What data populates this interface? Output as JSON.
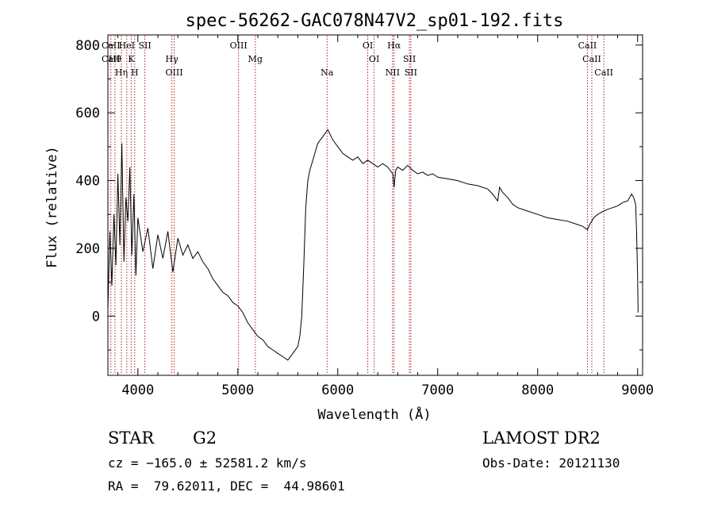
{
  "chart_data": {
    "type": "line",
    "title": "spec-56262-GAC078N47V2_sp01-192.fits",
    "xlabel": "Wavelength (Å)",
    "ylabel": "Flux (relative)",
    "xlim": [
      3700,
      9050
    ],
    "ylim": [
      -175,
      830
    ],
    "xticks": [
      4000,
      5000,
      6000,
      7000,
      8000,
      9000
    ],
    "yticks": [
      0,
      200,
      400,
      600,
      800
    ],
    "grid": false,
    "line_color": "#000000",
    "marker_color": "#b22222",
    "series": [
      {
        "x": [
          3700,
          3720,
          3740,
          3760,
          3780,
          3800,
          3820,
          3840,
          3860,
          3880,
          3900,
          3920,
          3940,
          3960,
          3980,
          4000,
          4050,
          4100,
          4150,
          4200,
          4250,
          4300,
          4350,
          4400,
          4450,
          4500,
          4550,
          4600,
          4650,
          4700,
          4750,
          4800,
          4850,
          4900,
          4950,
          5000,
          5050,
          5100,
          5150,
          5200,
          5250,
          5300,
          5350,
          5400,
          5450,
          5500,
          5550,
          5600,
          5620,
          5640,
          5660,
          5680,
          5700,
          5720,
          5750,
          5800,
          5850,
          5900,
          5950,
          6000,
          6050,
          6100,
          6150,
          6200,
          6250,
          6300,
          6350,
          6400,
          6450,
          6500,
          6550,
          6563,
          6580,
          6600,
          6650,
          6700,
          6750,
          6800,
          6850,
          6900,
          6950,
          7000,
          7100,
          7200,
          7300,
          7400,
          7500,
          7550,
          7600,
          7620,
          7650,
          7700,
          7750,
          7800,
          7900,
          8000,
          8100,
          8200,
          8300,
          8400,
          8450,
          8498,
          8520,
          8542,
          8560,
          8600,
          8662,
          8700,
          8750,
          8800,
          8850,
          8900,
          8940,
          8960,
          8980,
          8990,
          9000,
          9005
        ],
        "y": [
          20,
          250,
          90,
          300,
          150,
          420,
          210,
          510,
          160,
          350,
          280,
          440,
          180,
          360,
          120,
          290,
          190,
          260,
          140,
          240,
          170,
          250,
          130,
          230,
          180,
          210,
          170,
          190,
          160,
          140,
          110,
          90,
          70,
          60,
          40,
          30,
          10,
          -20,
          -40,
          -60,
          -70,
          -90,
          -100,
          -110,
          -120,
          -130,
          -110,
          -90,
          -60,
          0,
          150,
          320,
          400,
          430,
          460,
          510,
          530,
          550,
          520,
          500,
          480,
          470,
          460,
          470,
          450,
          460,
          450,
          440,
          450,
          440,
          420,
          380,
          430,
          440,
          430,
          445,
          430,
          420,
          425,
          415,
          420,
          410,
          405,
          400,
          390,
          385,
          375,
          360,
          340,
          380,
          365,
          350,
          330,
          320,
          310,
          300,
          290,
          285,
          280,
          270,
          265,
          255,
          270,
          280,
          290,
          300,
          310,
          315,
          320,
          325,
          335,
          340,
          360,
          350,
          330,
          250,
          120,
          10
        ]
      }
    ],
    "lines": [
      {
        "wavelength": 3730,
        "labels": [
          "CaII",
          "CaII"
        ]
      },
      {
        "wavelength": 3771,
        "labels": [
          "Hθ"
        ]
      },
      {
        "wavelength": 3835,
        "labels": [
          "Hη"
        ]
      },
      {
        "wavelength": 3889,
        "labels": [
          "HeI"
        ]
      },
      {
        "wavelength": 3934,
        "labels": [
          "K"
        ]
      },
      {
        "wavelength": 3968,
        "labels": [
          "H"
        ]
      },
      {
        "wavelength": 4070,
        "labels": [
          "SII"
        ]
      },
      {
        "wavelength": 4340,
        "labels": [
          "Hγ"
        ]
      },
      {
        "wavelength": 4363,
        "labels": [
          "OIII"
        ]
      },
      {
        "wavelength": 5007,
        "labels": [
          "OIII"
        ]
      },
      {
        "wavelength": 5175,
        "labels": [
          "Mg"
        ]
      },
      {
        "wavelength": 5893,
        "labels": [
          "Na"
        ]
      },
      {
        "wavelength": 6300,
        "labels": [
          "OI"
        ]
      },
      {
        "wavelength": 6364,
        "labels": [
          "OI"
        ]
      },
      {
        "wavelength": 6548,
        "labels": [
          "NII"
        ]
      },
      {
        "wavelength": 6563,
        "labels": [
          "Hα"
        ]
      },
      {
        "wavelength": 6717,
        "labels": [
          "SII"
        ]
      },
      {
        "wavelength": 6731,
        "labels": [
          "SII"
        ]
      },
      {
        "wavelength": 8498,
        "labels": [
          "CaII"
        ]
      },
      {
        "wavelength": 8542,
        "labels": [
          "CaII"
        ]
      },
      {
        "wavelength": 8662,
        "labels": [
          "CaII"
        ]
      }
    ]
  },
  "info": {
    "object_class": "STAR",
    "subclass": "G2",
    "survey": "LAMOST DR2",
    "cz": "cz = −165.0 ± 52581.2 km/s",
    "obs_date": "Obs-Date: 20121130",
    "coords": "RA =  79.62011, DEC =  44.98601"
  }
}
